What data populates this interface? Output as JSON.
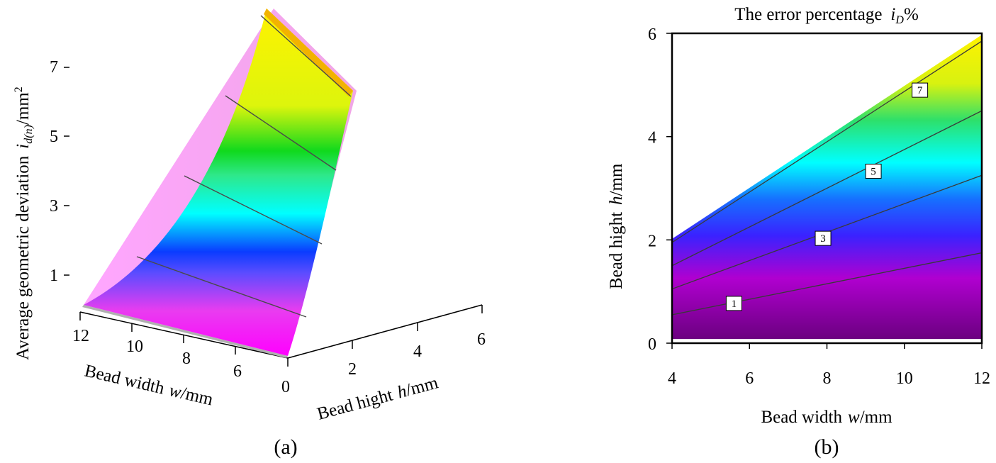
{
  "chart_data": [
    {
      "type": "surface3d",
      "panel_label": "(a)",
      "zlabel": {
        "prefix": "Average geometric deviation",
        "var": "i",
        "sub": "d(n)",
        "unit": "/mm",
        "sup": "2"
      },
      "xlabel": {
        "prefix": "Bead width",
        "var": "w",
        "unit": "/mm"
      },
      "ylabel": {
        "prefix": "Bead hight",
        "var": "h",
        "unit": "/mm"
      },
      "z_ticks": [
        "1",
        "3",
        "5",
        "7"
      ],
      "x_ticks": [
        "12",
        "10",
        "8",
        "6"
      ],
      "y_ticks": [
        "0",
        "2",
        "4",
        "6"
      ],
      "xlim": [
        4,
        12
      ],
      "ylim": [
        0,
        6
      ],
      "zlim": [
        0,
        8.5
      ],
      "contour_levels": [
        1.5,
        3.5,
        5.5,
        7.5
      ]
    },
    {
      "type": "contour",
      "panel_label": "(b)",
      "title": {
        "prefix": "The error percentage",
        "var": "i",
        "sub": "D",
        "suffix": "%"
      },
      "xlabel": {
        "prefix": "Bead width",
        "var": "w",
        "unit": "/mm"
      },
      "ylabel": {
        "prefix": "Bead hight",
        "var": "h",
        "unit": "/mm"
      },
      "x_ticks": [
        "4",
        "6",
        "8",
        "10",
        "12"
      ],
      "y_ticks": [
        "0",
        "2",
        "4",
        "6"
      ],
      "xlim": [
        4,
        12
      ],
      "ylim": [
        0,
        6
      ],
      "contour_lines": [
        {
          "label": "1",
          "x": [
            4,
            12
          ],
          "y": [
            0.55,
            1.75
          ],
          "label_at": [
            5.6,
            0.77
          ]
        },
        {
          "label": "3",
          "x": [
            4,
            12
          ],
          "y": [
            1.05,
            3.25
          ],
          "label_at": [
            7.9,
            2.03
          ]
        },
        {
          "label": "5",
          "x": [
            4,
            12
          ],
          "y": [
            1.5,
            4.5
          ],
          "label_at": [
            9.2,
            3.33
          ]
        },
        {
          "label": "7",
          "x": [
            4,
            12
          ],
          "y": [
            1.95,
            5.85
          ],
          "label_at": [
            10.4,
            4.9
          ]
        }
      ]
    }
  ]
}
